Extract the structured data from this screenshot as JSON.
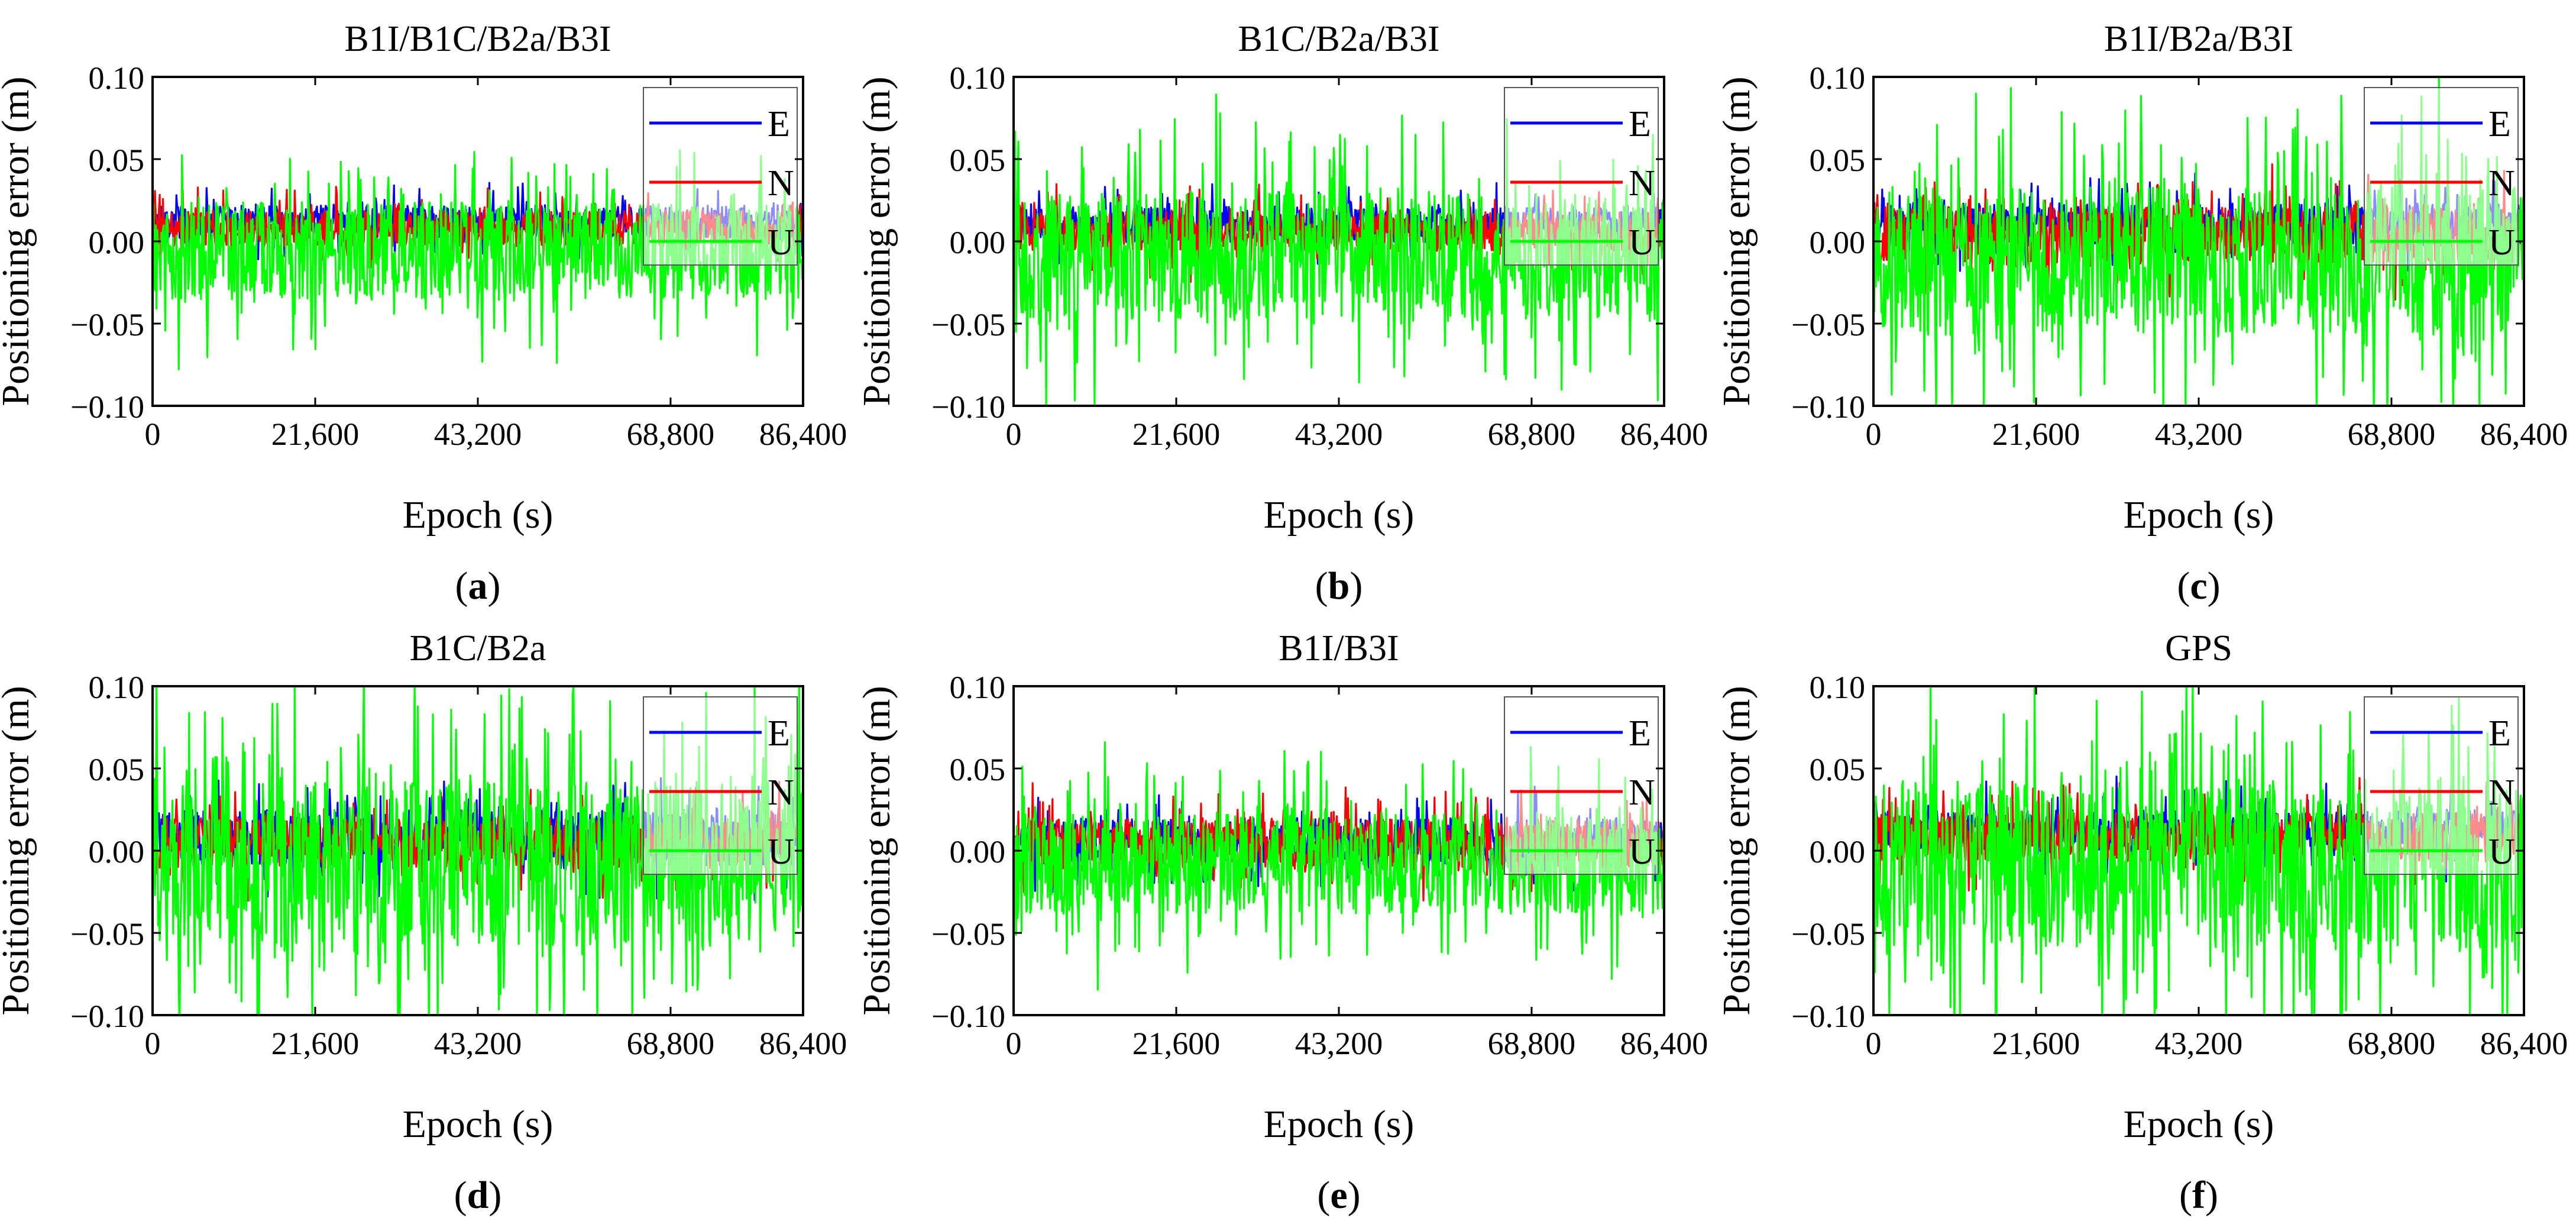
{
  "figure": {
    "ylabel": "Positioning error (m)",
    "xlabel": "Epoch (s)"
  },
  "legend_labels": [
    "E",
    "N",
    "U"
  ],
  "chart_data": [
    {
      "panel": "a",
      "type": "line",
      "title": "B1I/B1C/B2a/B3I",
      "xlabel": "Epoch (s)",
      "ylabel": "Positioning error (m)",
      "xlim": [
        0,
        86400
      ],
      "ylim": [
        -0.1,
        0.1
      ],
      "xticks": [
        0,
        21600,
        43200,
        68800,
        86400
      ],
      "xtick_labels": [
        "0",
        "21,600",
        "43,200",
        "68,800",
        "86,400"
      ],
      "yticks": [
        -0.1,
        -0.05,
        0.0,
        0.05,
        0.1
      ],
      "ytick_labels": [
        "−0.10",
        "−0.05",
        "0.00",
        "0.05",
        "0.10"
      ],
      "legend_position": "top-right",
      "series": [
        {
          "name": "E",
          "color": "#0000ff",
          "center": 0.012,
          "amplitude": 0.02,
          "spikiness": 0.2
        },
        {
          "name": "N",
          "color": "#ff0000",
          "center": 0.008,
          "amplitude": 0.022,
          "spikiness": 0.2
        },
        {
          "name": "U",
          "color": "#00ff00",
          "center": -0.006,
          "amplitude": 0.06,
          "spikiness": 0.25
        }
      ]
    },
    {
      "panel": "b",
      "type": "line",
      "title": "B1C/B2a/B3I",
      "xlabel": "Epoch (s)",
      "ylabel": "Positioning error (m)",
      "xlim": [
        0,
        86400
      ],
      "ylim": [
        -0.1,
        0.1
      ],
      "xticks": [
        0,
        21600,
        43200,
        68800,
        86400
      ],
      "xtick_labels": [
        "0",
        "21,600",
        "43,200",
        "68,800",
        "86,400"
      ],
      "yticks": [
        -0.1,
        -0.05,
        0.0,
        0.05,
        0.1
      ],
      "ytick_labels": [
        "−0.10",
        "−0.05",
        "0.00",
        "0.05",
        "0.10"
      ],
      "legend_position": "top-right",
      "series": [
        {
          "name": "E",
          "color": "#0000ff",
          "center": 0.01,
          "amplitude": 0.022,
          "spikiness": 0.2
        },
        {
          "name": "N",
          "color": "#ff0000",
          "center": 0.006,
          "amplitude": 0.024,
          "spikiness": 0.2
        },
        {
          "name": "U",
          "color": "#00ff00",
          "center": -0.01,
          "amplitude": 0.078,
          "spikiness": 0.3
        }
      ]
    },
    {
      "panel": "c",
      "type": "line",
      "title": "B1I/B2a/B3I",
      "xlabel": "Epoch (s)",
      "ylabel": "Positioning error (m)",
      "xlim": [
        0,
        86400
      ],
      "ylim": [
        -0.1,
        0.1
      ],
      "xticks": [
        0,
        21600,
        43200,
        68800,
        86400
      ],
      "xtick_labels": [
        "0",
        "21,600",
        "43,200",
        "68,800",
        "86,400"
      ],
      "yticks": [
        -0.1,
        -0.05,
        0.0,
        0.05,
        0.1
      ],
      "ytick_labels": [
        "−0.10",
        "−0.05",
        "0.00",
        "0.05",
        "0.10"
      ],
      "legend_position": "top-right",
      "series": [
        {
          "name": "E",
          "color": "#0000ff",
          "center": 0.01,
          "amplitude": 0.026,
          "spikiness": 0.25
        },
        {
          "name": "N",
          "color": "#ff0000",
          "center": 0.004,
          "amplitude": 0.034,
          "spikiness": 0.3
        },
        {
          "name": "U",
          "color": "#00ff00",
          "center": -0.012,
          "amplitude": 0.09,
          "spikiness": 0.35
        }
      ]
    },
    {
      "panel": "d",
      "type": "line",
      "title": "B1C/B2a",
      "xlabel": "Epoch (s)",
      "ylabel": "Positioning error (m)",
      "xlim": [
        0,
        86400
      ],
      "ylim": [
        -0.1,
        0.1
      ],
      "xticks": [
        0,
        21600,
        43200,
        68800,
        86400
      ],
      "xtick_labels": [
        "0",
        "21,600",
        "43,200",
        "68,800",
        "86,400"
      ],
      "yticks": [
        -0.1,
        -0.05,
        0.0,
        0.05,
        0.1
      ],
      "ytick_labels": [
        "−0.10",
        "−0.05",
        "0.00",
        "0.05",
        "0.10"
      ],
      "legend_position": "top-right",
      "series": [
        {
          "name": "E",
          "color": "#0000ff",
          "center": 0.008,
          "amplitude": 0.034,
          "spikiness": 0.25
        },
        {
          "name": "N",
          "color": "#ff0000",
          "center": 0.005,
          "amplitude": 0.03,
          "spikiness": 0.25
        },
        {
          "name": "U",
          "color": "#00ff00",
          "center": -0.008,
          "amplitude": 0.1,
          "spikiness": 0.4
        }
      ]
    },
    {
      "panel": "e",
      "type": "line",
      "title": "B1I/B3I",
      "xlabel": "Epoch (s)",
      "ylabel": "Positioning error (m)",
      "xlim": [
        0,
        86400
      ],
      "ylim": [
        -0.1,
        0.1
      ],
      "xticks": [
        0,
        21600,
        43200,
        68800,
        86400
      ],
      "xtick_labels": [
        "0",
        "21,600",
        "43,200",
        "68,800",
        "86,400"
      ],
      "yticks": [
        -0.1,
        -0.05,
        0.0,
        0.05,
        0.1
      ],
      "ytick_labels": [
        "−0.10",
        "−0.05",
        "0.00",
        "0.05",
        "0.10"
      ],
      "legend_position": "top-right",
      "series": [
        {
          "name": "E",
          "color": "#0000ff",
          "center": 0.006,
          "amplitude": 0.028,
          "spikiness": 0.2
        },
        {
          "name": "N",
          "color": "#ff0000",
          "center": 0.004,
          "amplitude": 0.03,
          "spikiness": 0.25
        },
        {
          "name": "U",
          "color": "#00ff00",
          "center": -0.008,
          "amplitude": 0.06,
          "spikiness": 0.3
        }
      ]
    },
    {
      "panel": "f",
      "type": "line",
      "title": "GPS",
      "xlabel": "Epoch (s)",
      "ylabel": "Positioning error (m)",
      "xlim": [
        0,
        86400
      ],
      "ylim": [
        -0.1,
        0.1
      ],
      "xticks": [
        0,
        21600,
        43200,
        68800,
        86400
      ],
      "xtick_labels": [
        "0",
        "21,600",
        "43,200",
        "68,800",
        "86,400"
      ],
      "yticks": [
        -0.1,
        -0.05,
        0.0,
        0.05,
        0.1
      ],
      "ytick_labels": [
        "−0.10",
        "−0.05",
        "0.00",
        "0.05",
        "0.10"
      ],
      "legend_position": "top-right",
      "series": [
        {
          "name": "E",
          "color": "#0000ff",
          "center": 0.012,
          "amplitude": 0.026,
          "spikiness": 0.2
        },
        {
          "name": "N",
          "color": "#ff0000",
          "center": 0.008,
          "amplitude": 0.03,
          "spikiness": 0.25
        },
        {
          "name": "U",
          "color": "#00ff00",
          "center": -0.01,
          "amplitude": 0.1,
          "spikiness": 0.45
        }
      ]
    }
  ]
}
